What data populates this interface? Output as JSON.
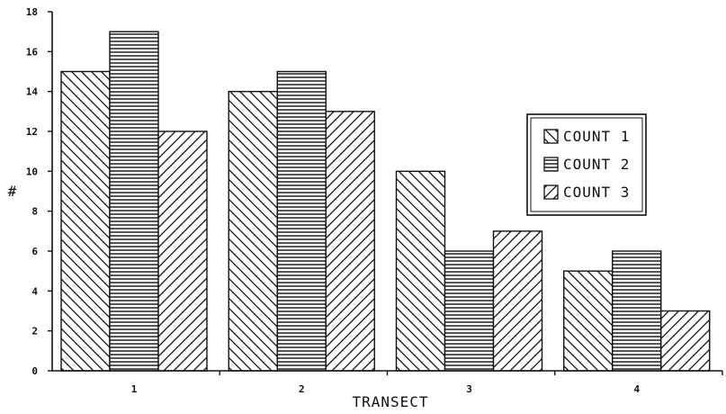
{
  "chart_data": {
    "type": "bar",
    "categories": [
      "1",
      "2",
      "3",
      "4"
    ],
    "series": [
      {
        "name": "COUNT 1",
        "values": [
          15,
          14,
          10,
          5
        ],
        "pattern": "backslash-hatch"
      },
      {
        "name": "COUNT 2",
        "values": [
          17,
          15,
          6,
          6
        ],
        "pattern": "horizontal-hatch"
      },
      {
        "name": "COUNT 3",
        "values": [
          12,
          13,
          7,
          3
        ],
        "pattern": "slash-hatch"
      }
    ],
    "xlabel": "TRANSECT",
    "ylabel": "#",
    "ylim": [
      0,
      18
    ],
    "yticks": [
      0,
      2,
      4,
      6,
      8,
      10,
      12,
      14,
      16,
      18
    ],
    "ytick_labels": [
      "0",
      "2",
      "4",
      "6",
      "8",
      "10",
      "12",
      "14",
      "16",
      "18"
    ],
    "grid": false,
    "legend_position": "right",
    "colors": {
      "ink": "#111111",
      "background": "#ffffff"
    }
  }
}
